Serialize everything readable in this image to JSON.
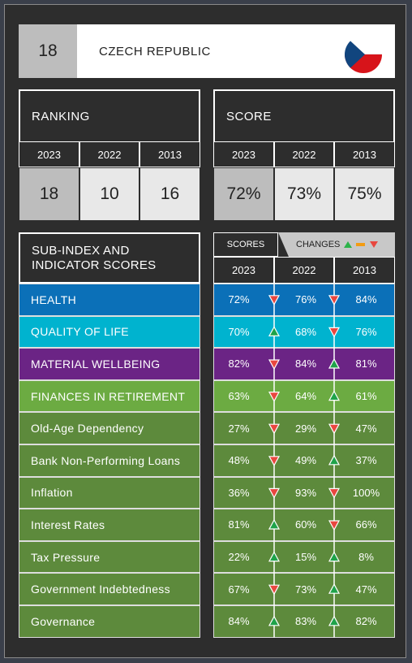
{
  "header": {
    "rank": "18",
    "country": "CZECH REPUBLIC"
  },
  "ranking": {
    "title": "RANKING",
    "years": [
      "2023",
      "2022",
      "2013"
    ],
    "values": [
      "18",
      "10",
      "16"
    ]
  },
  "score": {
    "title": "SCORE",
    "years": [
      "2023",
      "2022",
      "2013"
    ],
    "values": [
      "72%",
      "73%",
      "75%"
    ]
  },
  "sub_index": {
    "title": "SUB-INDEX AND INDICATOR SCORES",
    "scores_tab": "SCORES",
    "changes_tab": "CHANGES",
    "years": [
      "2023",
      "2022",
      "2013"
    ],
    "rows": [
      {
        "label": "HEALTH",
        "color": "#0b70b8",
        "values": [
          "72%",
          "76%",
          "84%"
        ],
        "changes": [
          "down",
          "down"
        ]
      },
      {
        "label": "QUALITY OF LIFE",
        "color": "#00b3cf",
        "values": [
          "70%",
          "68%",
          "76%"
        ],
        "changes": [
          "up",
          "down"
        ]
      },
      {
        "label": "MATERIAL WELLBEING",
        "color": "#6b2485",
        "values": [
          "82%",
          "84%",
          "81%"
        ],
        "changes": [
          "down",
          "up"
        ]
      },
      {
        "label": "FINANCES IN RETIREMENT",
        "color": "#6cab42",
        "values": [
          "63%",
          "64%",
          "61%"
        ],
        "changes": [
          "down",
          "up"
        ]
      },
      {
        "label": "Old-Age Dependency",
        "color": "#5d8a3c",
        "values": [
          "27%",
          "29%",
          "47%"
        ],
        "changes": [
          "down",
          "down"
        ]
      },
      {
        "label": "Bank Non-Performing Loans",
        "color": "#5d8a3c",
        "values": [
          "48%",
          "49%",
          "37%"
        ],
        "changes": [
          "down",
          "up"
        ]
      },
      {
        "label": "Inflation",
        "color": "#5d8a3c",
        "values": [
          "36%",
          "93%",
          "100%"
        ],
        "changes": [
          "down",
          "down"
        ]
      },
      {
        "label": "Interest Rates",
        "color": "#5d8a3c",
        "values": [
          "81%",
          "60%",
          "66%"
        ],
        "changes": [
          "up",
          "down"
        ]
      },
      {
        "label": "Tax Pressure",
        "color": "#5d8a3c",
        "values": [
          "22%",
          "15%",
          "8%"
        ],
        "changes": [
          "up",
          "up"
        ]
      },
      {
        "label": "Government Indebtedness",
        "color": "#5d8a3c",
        "values": [
          "67%",
          "73%",
          "47%"
        ],
        "changes": [
          "down",
          "up"
        ]
      },
      {
        "label": "Governance",
        "color": "#5d8a3c",
        "values": [
          "84%",
          "83%",
          "82%"
        ],
        "changes": [
          "up",
          "up"
        ]
      }
    ]
  }
}
